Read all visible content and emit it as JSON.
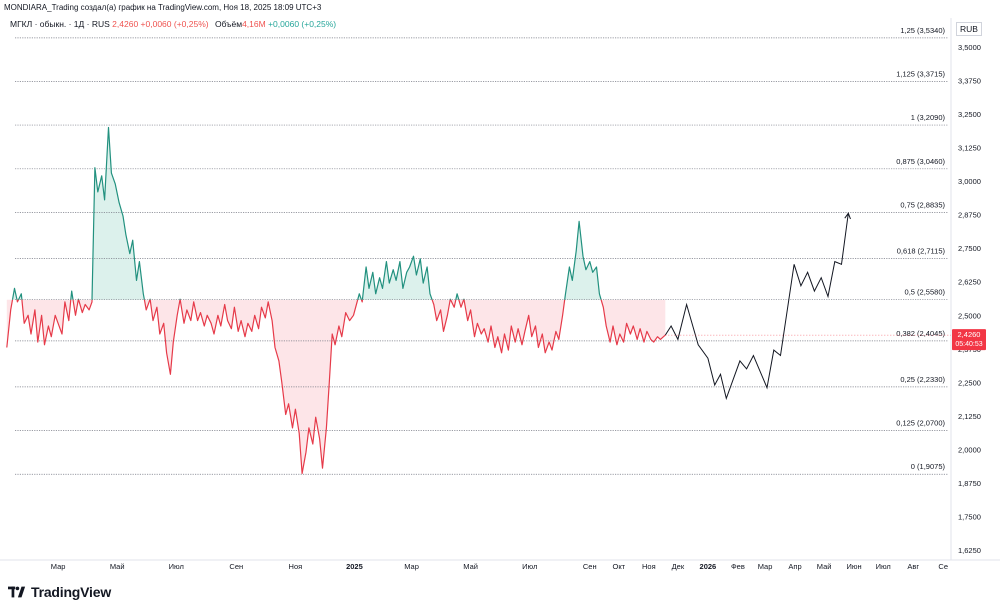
{
  "header": {
    "attribution": "MONDIARA_Trading создал(а) график на TradingView.com, Ноя 18, 2025 18:09 UTC+3"
  },
  "legend": {
    "symbol": "МГКЛ · обыкн. · 1Д · RUS",
    "price": "2,4260",
    "change": "+0,0060 (+0,25%)",
    "volume_label": "Объём",
    "volume_value": "4,16M",
    "volume_change": "+0,0060 (+0,25%)"
  },
  "currency": "RUB",
  "last_price_tag": {
    "price": "2,4260",
    "countdown": "05:40:53"
  },
  "brand": {
    "name": "TradingView"
  },
  "colors": {
    "up": "#22917f",
    "down": "#e63a49",
    "up_fill": "#d6efe9",
    "down_fill": "#fde1e4",
    "projection": "#131722",
    "fib_line": "#787b86",
    "tag_bg": "#f23645"
  },
  "chart_data": {
    "type": "line",
    "baseline": 2.558,
    "ylim": [
      1.625,
      3.53
    ],
    "y_ticks": [
      "3,5000",
      "3,3750",
      "3,2500",
      "3,1250",
      "3,0000",
      "2,8750",
      "2,7500",
      "2,6250",
      "2,5000",
      "2,3750",
      "2,2500",
      "2,1250",
      "2,0000",
      "1,8750",
      "1,7500",
      "1,6250"
    ],
    "y_tick_values": [
      3.5,
      3.375,
      3.25,
      3.125,
      3.0,
      2.875,
      2.75,
      2.625,
      2.5,
      2.375,
      2.25,
      2.125,
      2.0,
      1.875,
      1.75,
      1.625
    ],
    "x_labels": [
      {
        "label": "Мар",
        "date": "2024-03-01"
      },
      {
        "label": "Май",
        "date": "2024-05-01"
      },
      {
        "label": "Июл",
        "date": "2024-07-01"
      },
      {
        "label": "Сен",
        "date": "2024-09-01"
      },
      {
        "label": "Ноя",
        "date": "2024-11-01"
      },
      {
        "label": "2025",
        "date": "2025-01-01"
      },
      {
        "label": "Мар",
        "date": "2025-03-01"
      },
      {
        "label": "Май",
        "date": "2025-05-01"
      },
      {
        "label": "Июл",
        "date": "2025-07-01"
      },
      {
        "label": "Сен",
        "date": "2025-09-01"
      },
      {
        "label": "Окт",
        "date": "2025-10-01"
      },
      {
        "label": "Ноя",
        "date": "2025-11-01"
      },
      {
        "label": "Дек",
        "date": "2025-12-01"
      },
      {
        "label": "2026",
        "date": "2026-01-01"
      },
      {
        "label": "Фев",
        "date": "2026-02-01"
      },
      {
        "label": "Мар",
        "date": "2026-03-01"
      },
      {
        "label": "Апр",
        "date": "2026-04-01"
      },
      {
        "label": "Май",
        "date": "2026-05-01"
      },
      {
        "label": "Июн",
        "date": "2026-06-01"
      },
      {
        "label": "Июл",
        "date": "2026-07-01"
      },
      {
        "label": "Авг",
        "date": "2026-08-01"
      },
      {
        "label": "Се",
        "date": "2026-09-01"
      }
    ],
    "fib_levels": [
      {
        "ratio": "1,25",
        "label": "1,25 (3,5340)",
        "value": 3.534
      },
      {
        "ratio": "1,125",
        "label": "1,125 (3,3715)",
        "value": 3.3715
      },
      {
        "ratio": "1",
        "label": "1 (3,2090)",
        "value": 3.209
      },
      {
        "ratio": "0,875",
        "label": "0,875 (3,0460)",
        "value": 3.046
      },
      {
        "ratio": "0,75",
        "label": "0,75 (2,8835)",
        "value": 2.8835
      },
      {
        "ratio": "0,618",
        "label": "0,618 (2,7115)",
        "value": 2.7115
      },
      {
        "ratio": "0,5",
        "label": "0,5 (2,5580)",
        "value": 2.558
      },
      {
        "ratio": "0,382",
        "label": "0,382 (2,4045)",
        "value": 2.4045
      },
      {
        "ratio": "0,25",
        "label": "0,25 (2,2330)",
        "value": 2.233
      },
      {
        "ratio": "0,125",
        "label": "0,125 (2,0700)",
        "value": 2.07
      },
      {
        "ratio": "0",
        "label": "0 (1,9075)",
        "value": 1.9075
      }
    ],
    "series": [
      {
        "points": [
          [
            "2024-01-08",
            2.38
          ],
          [
            "2024-01-12",
            2.52
          ],
          [
            "2024-01-16",
            2.6
          ],
          [
            "2024-01-19",
            2.55
          ],
          [
            "2024-01-23",
            2.58
          ],
          [
            "2024-01-26",
            2.47
          ],
          [
            "2024-01-30",
            2.5
          ],
          [
            "2024-02-02",
            2.43
          ],
          [
            "2024-02-06",
            2.52
          ],
          [
            "2024-02-09",
            2.4
          ],
          [
            "2024-02-13",
            2.5
          ],
          [
            "2024-02-16",
            2.39
          ],
          [
            "2024-02-20",
            2.46
          ],
          [
            "2024-02-23",
            2.42
          ],
          [
            "2024-02-27",
            2.5
          ],
          [
            "2024-03-01",
            2.47
          ],
          [
            "2024-03-05",
            2.43
          ],
          [
            "2024-03-08",
            2.55
          ],
          [
            "2024-03-12",
            2.48
          ],
          [
            "2024-03-15",
            2.59
          ],
          [
            "2024-03-19",
            2.5
          ],
          [
            "2024-03-22",
            2.56
          ],
          [
            "2024-03-26",
            2.51
          ],
          [
            "2024-03-29",
            2.54
          ],
          [
            "2024-04-02",
            2.52
          ],
          [
            "2024-04-05",
            2.55
          ],
          [
            "2024-04-08",
            3.05
          ],
          [
            "2024-04-11",
            2.96
          ],
          [
            "2024-04-15",
            3.02
          ],
          [
            "2024-04-18",
            2.93
          ],
          [
            "2024-04-22",
            3.2
          ],
          [
            "2024-04-25",
            3.03
          ],
          [
            "2024-04-29",
            2.99
          ],
          [
            "2024-05-03",
            2.92
          ],
          [
            "2024-05-07",
            2.87
          ],
          [
            "2024-05-10",
            2.8
          ],
          [
            "2024-05-14",
            2.73
          ],
          [
            "2024-05-17",
            2.78
          ],
          [
            "2024-05-21",
            2.63
          ],
          [
            "2024-05-24",
            2.7
          ],
          [
            "2024-05-28",
            2.58
          ],
          [
            "2024-05-31",
            2.52
          ],
          [
            "2024-06-04",
            2.56
          ],
          [
            "2024-06-07",
            2.48
          ],
          [
            "2024-06-11",
            2.53
          ],
          [
            "2024-06-14",
            2.43
          ],
          [
            "2024-06-18",
            2.47
          ],
          [
            "2024-06-21",
            2.36
          ],
          [
            "2024-06-25",
            2.28
          ],
          [
            "2024-06-28",
            2.4
          ],
          [
            "2024-07-02",
            2.5
          ],
          [
            "2024-07-05",
            2.56
          ],
          [
            "2024-07-09",
            2.47
          ],
          [
            "2024-07-12",
            2.52
          ],
          [
            "2024-07-16",
            2.48
          ],
          [
            "2024-07-19",
            2.55
          ],
          [
            "2024-07-23",
            2.48
          ],
          [
            "2024-07-26",
            2.51
          ],
          [
            "2024-07-30",
            2.46
          ],
          [
            "2024-08-02",
            2.5
          ],
          [
            "2024-08-06",
            2.47
          ],
          [
            "2024-08-09",
            2.43
          ],
          [
            "2024-08-13",
            2.5
          ],
          [
            "2024-08-16",
            2.46
          ],
          [
            "2024-08-20",
            2.54
          ],
          [
            "2024-08-23",
            2.48
          ],
          [
            "2024-08-27",
            2.45
          ],
          [
            "2024-08-30",
            2.53
          ],
          [
            "2024-09-03",
            2.44
          ],
          [
            "2024-09-06",
            2.48
          ],
          [
            "2024-09-10",
            2.42
          ],
          [
            "2024-09-13",
            2.47
          ],
          [
            "2024-09-17",
            2.44
          ],
          [
            "2024-09-20",
            2.5
          ],
          [
            "2024-09-24",
            2.45
          ],
          [
            "2024-09-27",
            2.53
          ],
          [
            "2024-10-01",
            2.49
          ],
          [
            "2024-10-04",
            2.55
          ],
          [
            "2024-10-08",
            2.48
          ],
          [
            "2024-10-11",
            2.38
          ],
          [
            "2024-10-15",
            2.33
          ],
          [
            "2024-10-18",
            2.25
          ],
          [
            "2024-10-22",
            2.13
          ],
          [
            "2024-10-25",
            2.17
          ],
          [
            "2024-10-29",
            2.08
          ],
          [
            "2024-11-01",
            2.15
          ],
          [
            "2024-11-05",
            2.06
          ],
          [
            "2024-11-08",
            1.91
          ],
          [
            "2024-11-12",
            1.99
          ],
          [
            "2024-11-15",
            2.08
          ],
          [
            "2024-11-19",
            2.02
          ],
          [
            "2024-11-22",
            2.12
          ],
          [
            "2024-11-26",
            2.04
          ],
          [
            "2024-11-29",
            1.93
          ],
          [
            "2024-12-03",
            2.08
          ],
          [
            "2024-12-06",
            2.25
          ],
          [
            "2024-12-09",
            2.43
          ],
          [
            "2024-12-12",
            2.39
          ],
          [
            "2024-12-16",
            2.46
          ],
          [
            "2024-12-19",
            2.42
          ],
          [
            "2024-12-23",
            2.51
          ],
          [
            "2024-12-27",
            2.48
          ],
          [
            "2024-12-31",
            2.5
          ],
          [
            "2025-01-06",
            2.58
          ],
          [
            "2025-01-09",
            2.55
          ],
          [
            "2025-01-13",
            2.68
          ],
          [
            "2025-01-16",
            2.6
          ],
          [
            "2025-01-20",
            2.66
          ],
          [
            "2025-01-23",
            2.58
          ],
          [
            "2025-01-27",
            2.64
          ],
          [
            "2025-01-30",
            2.6
          ],
          [
            "2025-02-03",
            2.7
          ],
          [
            "2025-02-06",
            2.62
          ],
          [
            "2025-02-10",
            2.67
          ],
          [
            "2025-02-13",
            2.63
          ],
          [
            "2025-02-17",
            2.7
          ],
          [
            "2025-02-20",
            2.6
          ],
          [
            "2025-02-24",
            2.66
          ],
          [
            "2025-02-27",
            2.68
          ],
          [
            "2025-03-03",
            2.72
          ],
          [
            "2025-03-06",
            2.65
          ],
          [
            "2025-03-10",
            2.71
          ],
          [
            "2025-03-13",
            2.62
          ],
          [
            "2025-03-17",
            2.68
          ],
          [
            "2025-03-20",
            2.58
          ],
          [
            "2025-03-24",
            2.54
          ],
          [
            "2025-03-27",
            2.48
          ],
          [
            "2025-03-31",
            2.52
          ],
          [
            "2025-04-03",
            2.44
          ],
          [
            "2025-04-07",
            2.5
          ],
          [
            "2025-04-10",
            2.56
          ],
          [
            "2025-04-14",
            2.53
          ],
          [
            "2025-04-17",
            2.58
          ],
          [
            "2025-04-21",
            2.53
          ],
          [
            "2025-04-24",
            2.56
          ],
          [
            "2025-04-28",
            2.48
          ],
          [
            "2025-05-01",
            2.52
          ],
          [
            "2025-05-05",
            2.42
          ],
          [
            "2025-05-08",
            2.47
          ],
          [
            "2025-05-12",
            2.43
          ],
          [
            "2025-05-15",
            2.45
          ],
          [
            "2025-05-19",
            2.4
          ],
          [
            "2025-05-22",
            2.46
          ],
          [
            "2025-05-26",
            2.38
          ],
          [
            "2025-05-29",
            2.42
          ],
          [
            "2025-06-02",
            2.36
          ],
          [
            "2025-06-05",
            2.43
          ],
          [
            "2025-06-09",
            2.37
          ],
          [
            "2025-06-12",
            2.46
          ],
          [
            "2025-06-16",
            2.4
          ],
          [
            "2025-06-19",
            2.45
          ],
          [
            "2025-06-23",
            2.39
          ],
          [
            "2025-06-26",
            2.44
          ],
          [
            "2025-06-30",
            2.5
          ],
          [
            "2025-07-03",
            2.42
          ],
          [
            "2025-07-07",
            2.46
          ],
          [
            "2025-07-10",
            2.38
          ],
          [
            "2025-07-14",
            2.43
          ],
          [
            "2025-07-17",
            2.36
          ],
          [
            "2025-07-21",
            2.4
          ],
          [
            "2025-07-24",
            2.37
          ],
          [
            "2025-07-28",
            2.44
          ],
          [
            "2025-07-31",
            2.41
          ],
          [
            "2025-08-04",
            2.5
          ],
          [
            "2025-08-07",
            2.58
          ],
          [
            "2025-08-11",
            2.68
          ],
          [
            "2025-08-14",
            2.63
          ],
          [
            "2025-08-18",
            2.74
          ],
          [
            "2025-08-21",
            2.85
          ],
          [
            "2025-08-25",
            2.72
          ],
          [
            "2025-08-28",
            2.67
          ],
          [
            "2025-09-01",
            2.7
          ],
          [
            "2025-09-04",
            2.66
          ],
          [
            "2025-09-08",
            2.68
          ],
          [
            "2025-09-11",
            2.58
          ],
          [
            "2025-09-15",
            2.53
          ],
          [
            "2025-09-18",
            2.46
          ],
          [
            "2025-09-22",
            2.4
          ],
          [
            "2025-09-25",
            2.46
          ],
          [
            "2025-09-29",
            2.39
          ],
          [
            "2025-10-02",
            2.43
          ],
          [
            "2025-10-06",
            2.4
          ],
          [
            "2025-10-09",
            2.47
          ],
          [
            "2025-10-13",
            2.43
          ],
          [
            "2025-10-16",
            2.46
          ],
          [
            "2025-10-20",
            2.41
          ],
          [
            "2025-10-23",
            2.45
          ],
          [
            "2025-10-27",
            2.4
          ],
          [
            "2025-10-30",
            2.44
          ],
          [
            "2025-11-03",
            2.41
          ],
          [
            "2025-11-06",
            2.4
          ],
          [
            "2025-11-10",
            2.42
          ],
          [
            "2025-11-13",
            2.41
          ],
          [
            "2025-11-18",
            2.426
          ]
        ]
      },
      {
        "points": [
          [
            "2025-11-18",
            2.426
          ],
          [
            "2025-11-24",
            2.46
          ],
          [
            "2025-12-01",
            2.41
          ],
          [
            "2025-12-10",
            2.54
          ],
          [
            "2025-12-22",
            2.39
          ],
          [
            "2026-01-01",
            2.34
          ],
          [
            "2026-01-08",
            2.24
          ],
          [
            "2026-01-14",
            2.28
          ],
          [
            "2026-01-20",
            2.19
          ],
          [
            "2026-02-03",
            2.33
          ],
          [
            "2026-02-10",
            2.3
          ],
          [
            "2026-02-17",
            2.35
          ],
          [
            "2026-03-03",
            2.23
          ],
          [
            "2026-03-10",
            2.37
          ],
          [
            "2026-03-17",
            2.35
          ],
          [
            "2026-03-31",
            2.69
          ],
          [
            "2026-04-07",
            2.61
          ],
          [
            "2026-04-14",
            2.66
          ],
          [
            "2026-04-21",
            2.59
          ],
          [
            "2026-04-28",
            2.64
          ],
          [
            "2026-05-05",
            2.57
          ],
          [
            "2026-05-12",
            2.7
          ],
          [
            "2026-05-19",
            2.69
          ],
          [
            "2026-05-26",
            2.88
          ]
        ]
      }
    ]
  }
}
